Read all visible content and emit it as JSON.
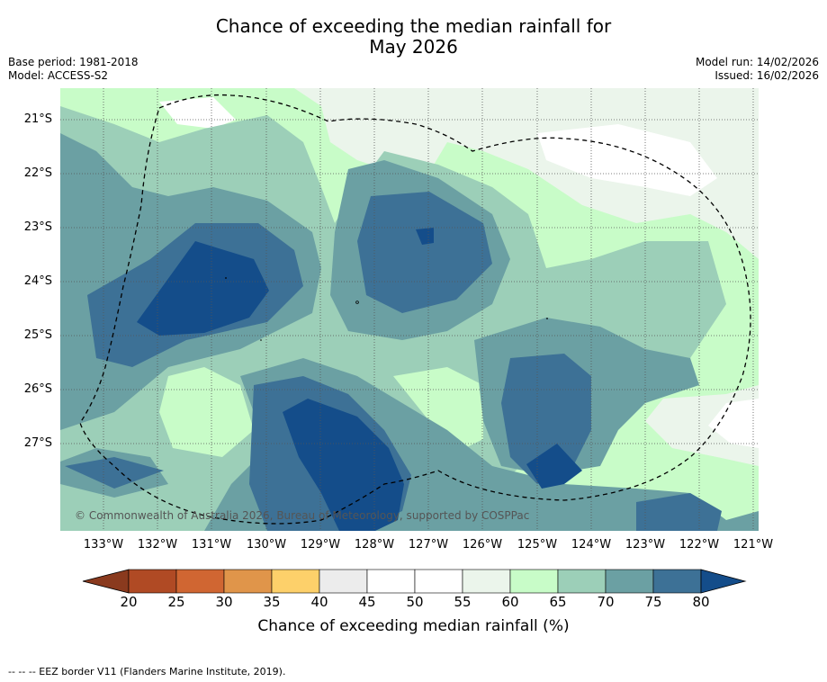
{
  "title": {
    "line1": "Chance of exceeding the median rainfall for",
    "line2": "May 2026"
  },
  "meta": {
    "base_period": "Base period: 1981-2018",
    "model": "Model: ACCESS-S2",
    "model_run": "Model run: 14/02/2026",
    "issued": "Issued: 16/02/2026"
  },
  "map": {
    "copyright": "© Commonwealth of Australia 2026, Bureau of Meteorology, supported by COSPPac",
    "lat_labels": [
      "21°S",
      "22°S",
      "23°S",
      "24°S",
      "25°S",
      "26°S",
      "27°S"
    ],
    "lon_labels": [
      "133°W",
      "132°W",
      "131°W",
      "130°W",
      "129°W",
      "128°W",
      "127°W",
      "126°W",
      "125°W",
      "124°W",
      "123°W",
      "122°W",
      "121°W"
    ]
  },
  "colorbar": {
    "ticks": [
      "20",
      "25",
      "30",
      "35",
      "40",
      "45",
      "50",
      "55",
      "60",
      "65",
      "70",
      "75",
      "80"
    ],
    "colors": [
      "#8a3a1e",
      "#b04a24",
      "#d06632",
      "#e0954a",
      "#fdd06a",
      "#ececec",
      "#ffffff",
      "#ffffff",
      "#ebf5eb",
      "#c8fcc8",
      "#9ccfb8",
      "#6ba0a3",
      "#3d7196",
      "#144d8a"
    ],
    "label": "Chance of exceeding median rainfall (%)"
  },
  "footnote": "--  --  -- EEZ border V11 (Flanders Marine Institute, 2019)."
}
